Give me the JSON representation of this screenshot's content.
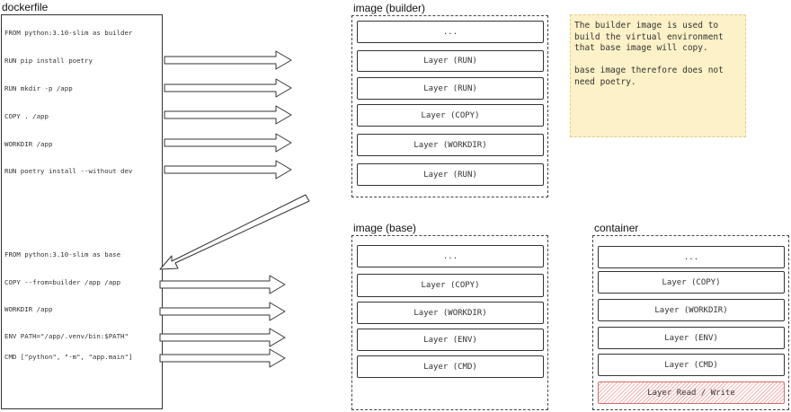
{
  "dockerfile": {
    "title": "dockerfile",
    "lines": [
      "FROM python:3.10-slim as builder",
      "RUN pip install poetry",
      "RUN mkdir -p /app",
      "COPY . /app",
      "WORKDIR /app",
      "RUN poetry install --without dev",
      "FROM python:3.10-slim as base",
      "COPY --from=builder /app /app",
      "WORKDIR /app",
      "ENV PATH=\"/app/.venv/bin:$PATH\"",
      "CMD [\"python\", \"-m\", \"app.main\"]"
    ]
  },
  "builder_image": {
    "title": "image (builder)",
    "layers": [
      "...",
      "Layer (RUN)",
      "Layer (RUN)",
      "Layer (COPY)",
      "Layer (WORKDIR)",
      "Layer (RUN)"
    ]
  },
  "note": {
    "paragraph1": "The builder image is used to\nbuild the virtual environment\nthat base image will copy.",
    "paragraph2": "base image therefore does not\nneed poetry."
  },
  "base_image": {
    "title": "image (base)",
    "layers": [
      "...",
      "Layer (COPY)",
      "Layer (WORKDIR)",
      "Layer (ENV)",
      "Layer (CMD)"
    ]
  },
  "container": {
    "title": "container",
    "layers": [
      "...",
      "Layer (COPY)",
      "Layer (WORKDIR)",
      "Layer (ENV)",
      "Layer (CMD)",
      "Layer Read / Write"
    ]
  },
  "colors": {
    "note_background": "#fdf1c7",
    "read_write_layer": "#f3b2b2"
  }
}
